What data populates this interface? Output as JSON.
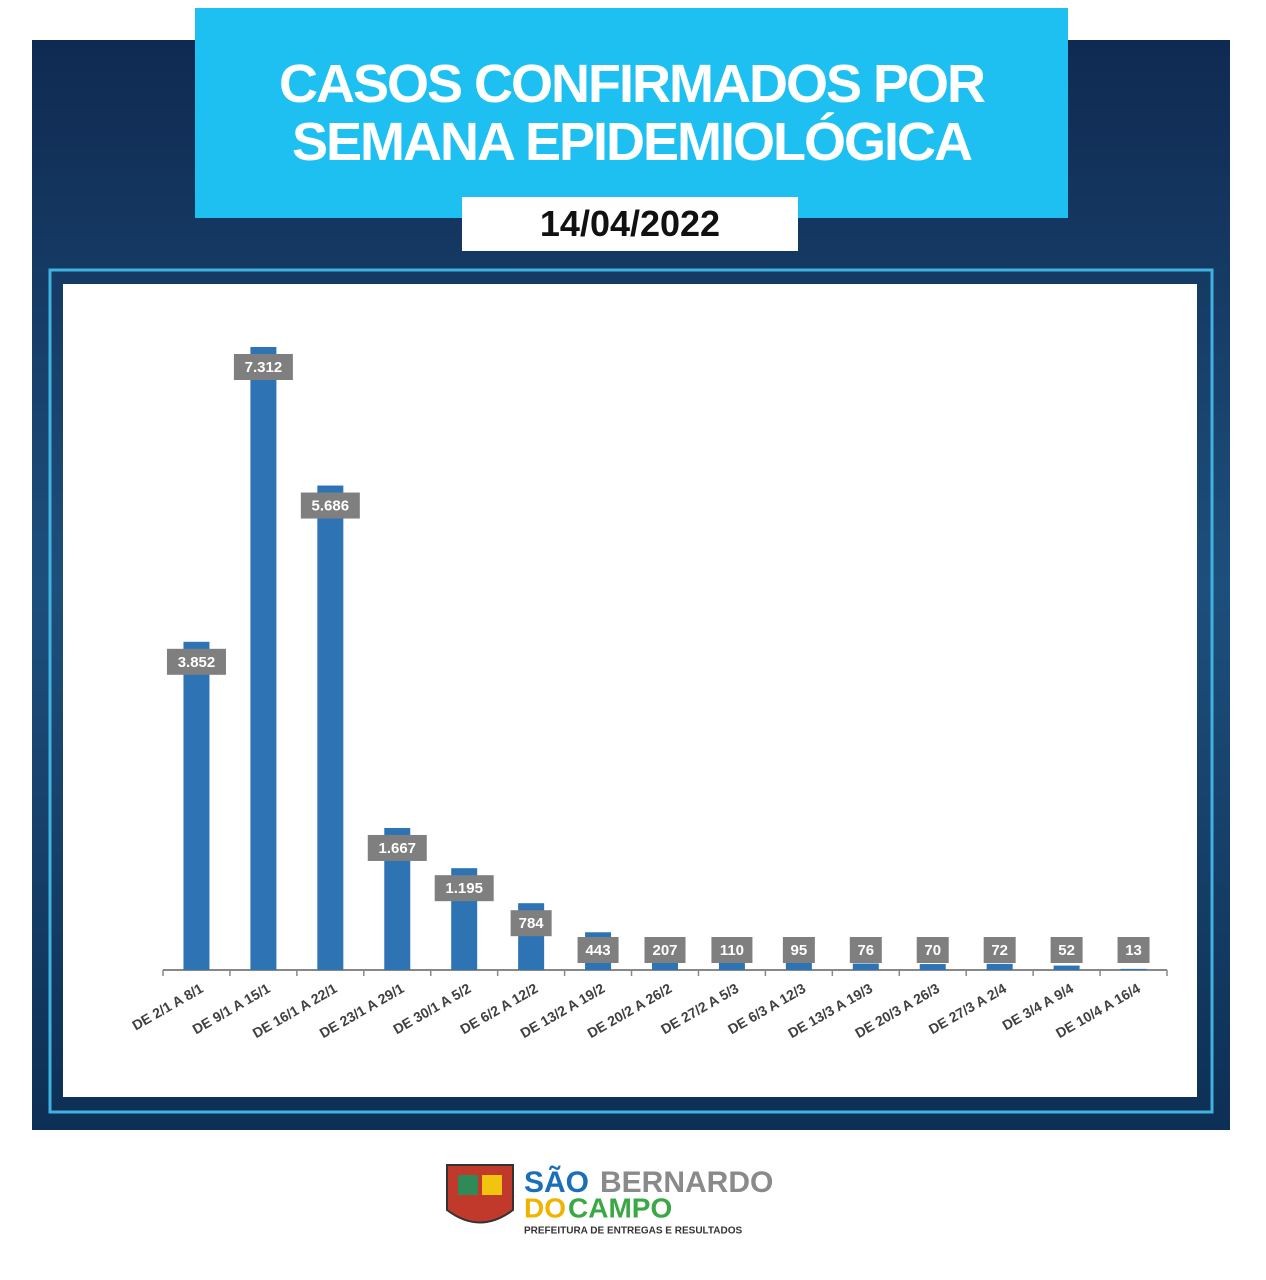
{
  "chart_data": {
    "type": "bar",
    "title": "CASOS CONFIRMADOS POR SEMANA EPIDEMIOLÓGICA",
    "subtitle": "14/04/2022",
    "categories": [
      "DE 2/1 A 8/1",
      "DE 9/1 A 15/1",
      "DE 16/1 A 22/1",
      "DE 23/1 A 29/1",
      "DE 30/1 A 5/2",
      "DE 6/2 A 12/2",
      "DE 13/2 A 19/2",
      "DE 20/2 A 26/2",
      "DE 27/2 A 5/3",
      "DE 6/3 A 12/3",
      "DE 13/3 A 19/3",
      "DE 20/3 A 26/3",
      "DE 27/3 A 2/4",
      "DE 3/4 A 9/4",
      "DE 10/4 A 16/4"
    ],
    "values": [
      3852,
      7312,
      5686,
      1667,
      1195,
      784,
      443,
      207,
      110,
      95,
      76,
      70,
      72,
      52,
      13
    ],
    "value_labels": [
      "3.852",
      "7.312",
      "5.686",
      "1.667",
      "1.195",
      "784",
      "443",
      "207",
      "110",
      "95",
      "76",
      "70",
      "72",
      "52",
      "13"
    ],
    "color": "#2e74b5"
  },
  "logo": {
    "line1a": "SÃO",
    "line1b": "BERNARDO",
    "line2a": "DO",
    "line2b": "CAMPO",
    "tagline": "PREFEITURA DE ENTREGAS E RESULTADOS"
  }
}
